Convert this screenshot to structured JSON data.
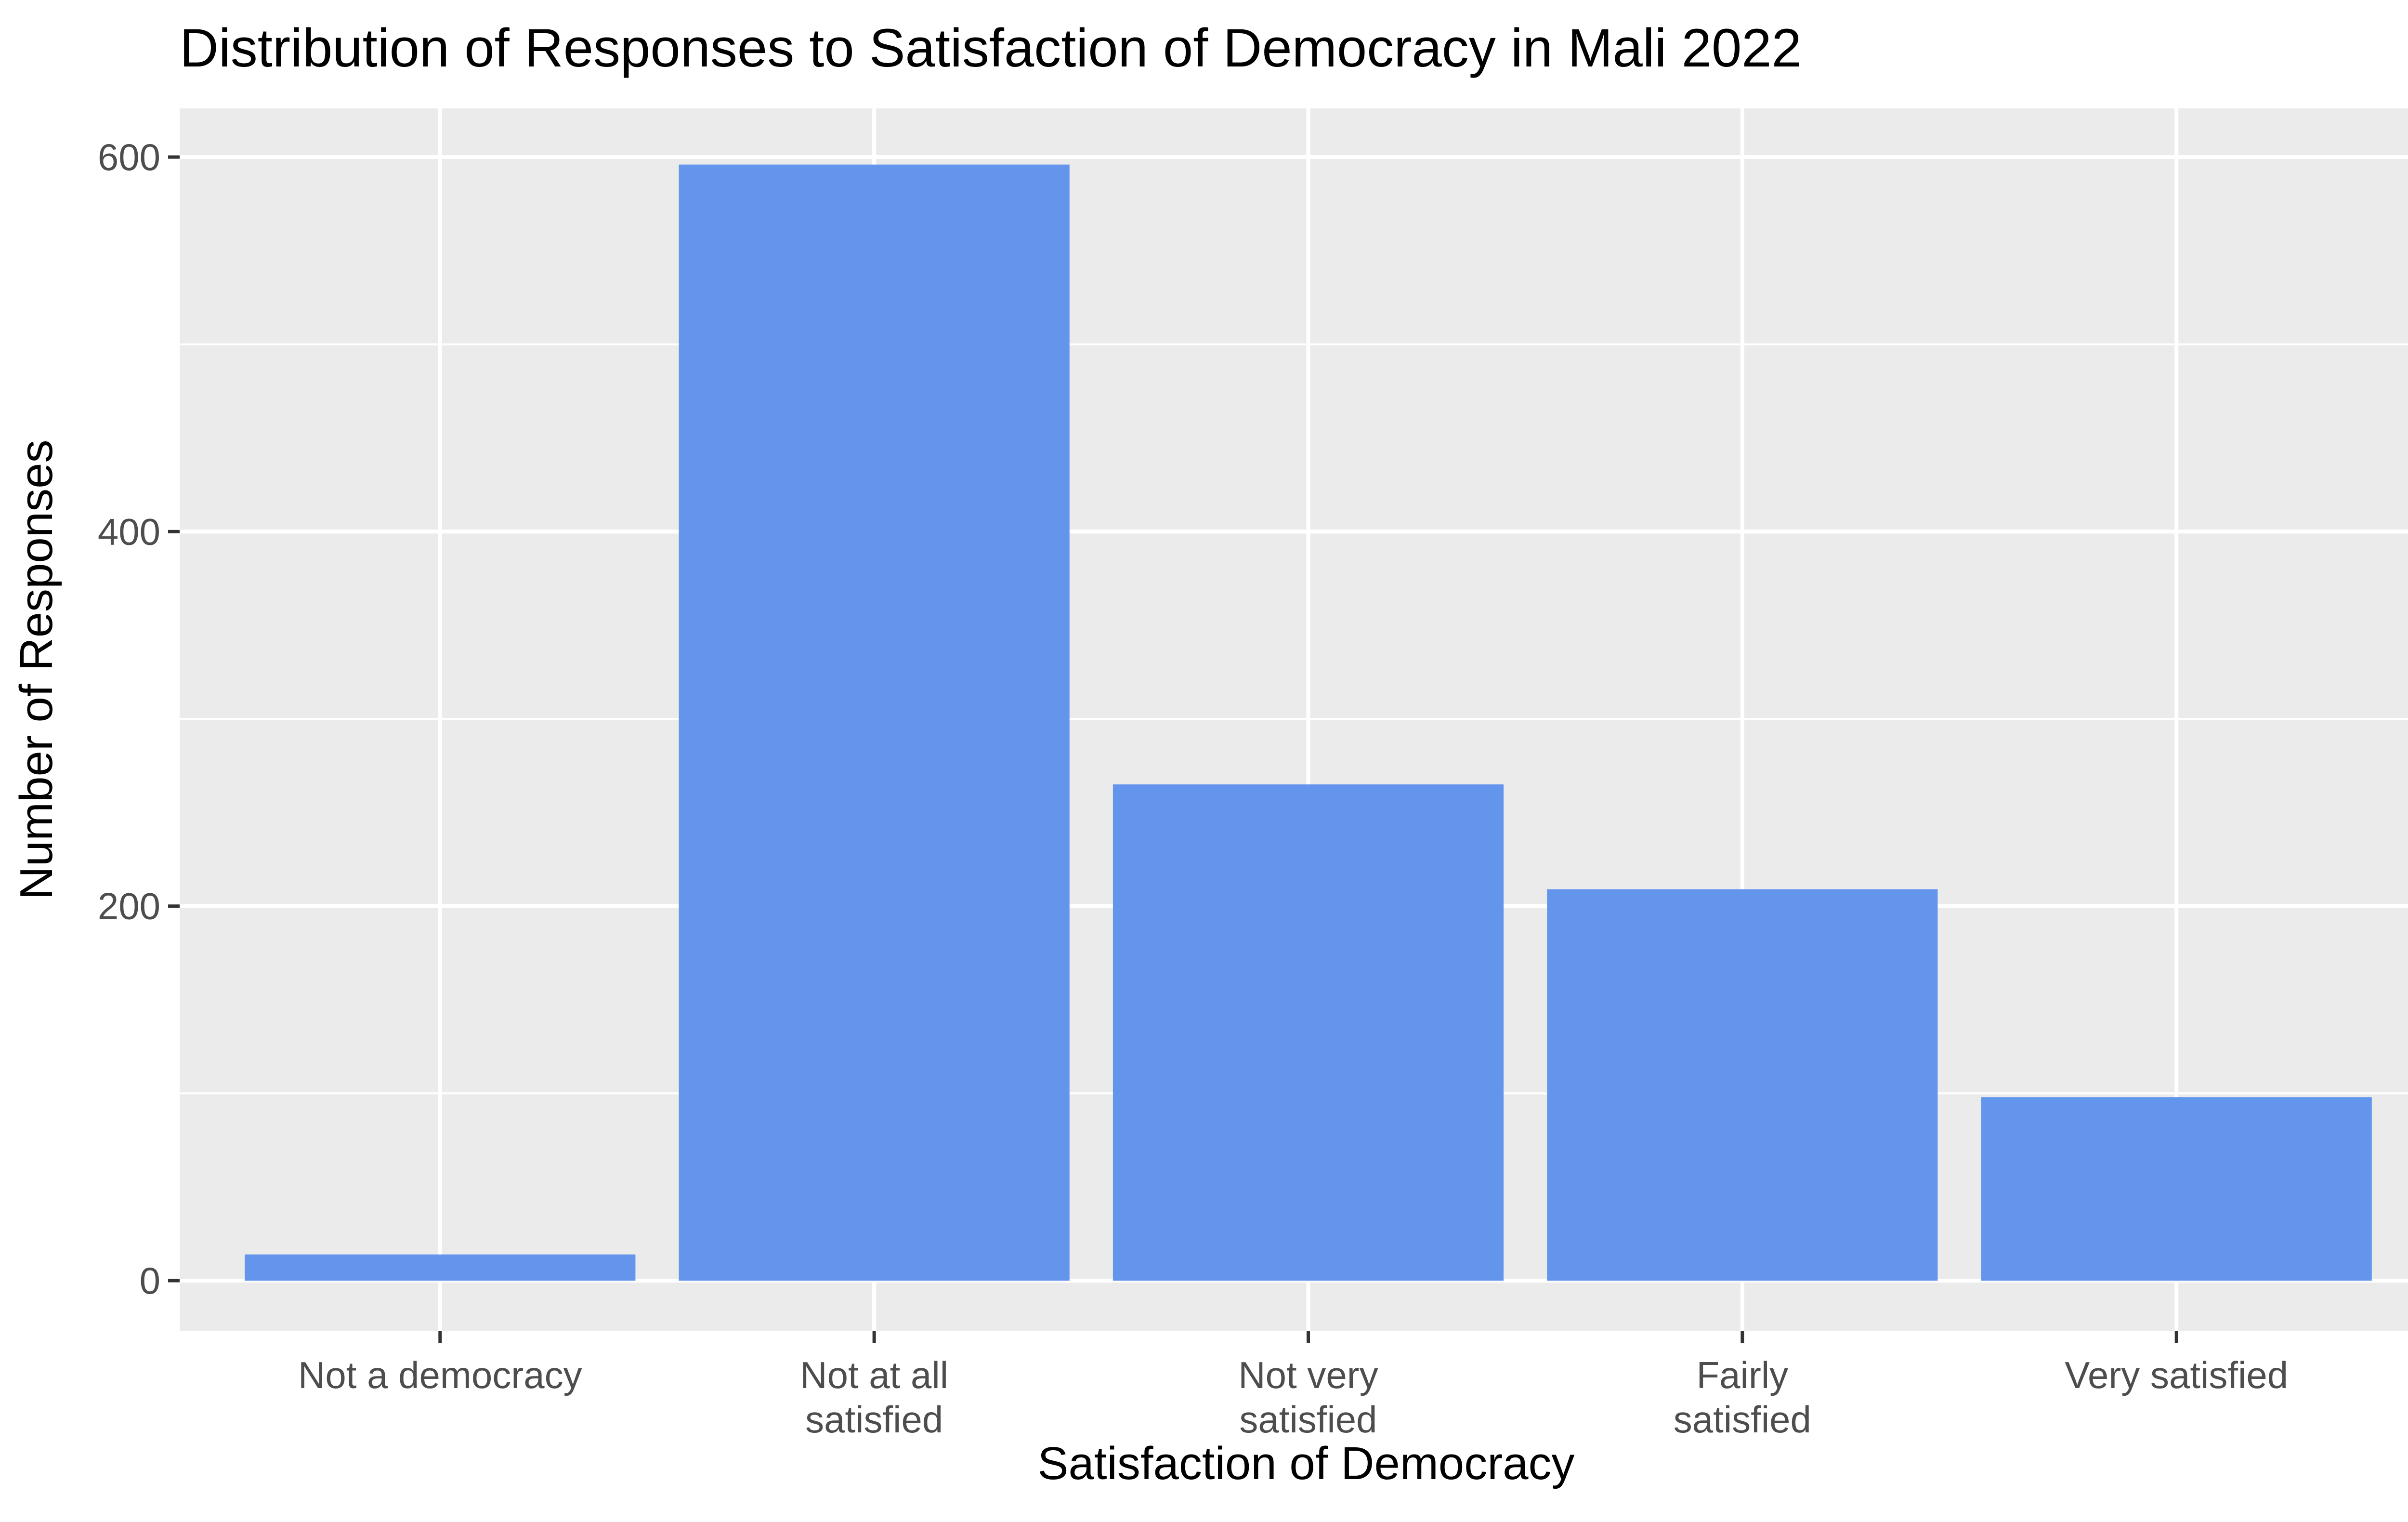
{
  "chart_data": {
    "type": "bar",
    "title": "Distribution of Responses to Satisfaction of Democracy in Mali 2022",
    "xlabel": "Satisfaction of Democracy",
    "ylabel": "Number of Responses",
    "categories": [
      [
        "Not a democracy"
      ],
      [
        "Not at all",
        "satisfied"
      ],
      [
        "Not very",
        "satisfied"
      ],
      [
        "Fairly",
        "satisfied"
      ],
      [
        "Very satisfied"
      ]
    ],
    "values": [
      14,
      596,
      265,
      209,
      98
    ],
    "ylim": [
      -27,
      626
    ],
    "yticks": [
      0,
      200,
      400,
      600
    ],
    "grid": true,
    "bar_color": "#6495ED",
    "panel_background": "#EBEBEB",
    "gridline_color": "#FFFFFF"
  }
}
